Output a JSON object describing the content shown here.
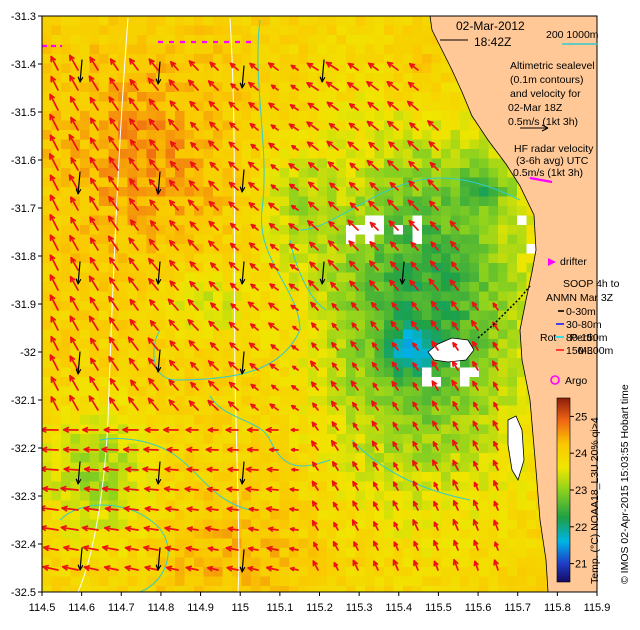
{
  "map": {
    "date": "02-Mar-2012",
    "time": "18:42Z",
    "scale_label": "200  1000m",
    "altimetry": {
      "lines": [
        "Altimetric sealevel",
        "(0.1m contours)",
        "and velocity for",
        "02-Mar 18Z"
      ],
      "speed": "0.5m/s (1kt 3h)"
    },
    "hf_radar": {
      "lines": [
        "HF radar velocity",
        "(3-6h avg) UTC"
      ],
      "speed": "0.5m/s (1kt 3h)"
    },
    "drifter_label": "drifter",
    "soop": {
      "lines": [
        "SOOP 4h to",
        "ANMN Mar 3Z"
      ],
      "depths": [
        {
          "label": "0-30m",
          "color": "#000000"
        },
        {
          "label": "30-80m",
          "color": "#1a1aff"
        },
        {
          "label": "80-150m",
          "color": "#00e5ff"
        },
        {
          "label": "150-300m",
          "color": "#ff1a1a"
        }
      ]
    },
    "place_perth": "Perth",
    "place_rot": "Rot",
    "place_ml": "ML",
    "argo_label": "Argo",
    "colorbar": {
      "label": "Temp. (°C) NOAA18_L3U 20% qi>4",
      "ticks": [
        "25",
        "24",
        "23",
        "22",
        "21"
      ],
      "range": [
        20.5,
        25.5
      ]
    },
    "credit": "© IMOS 02-Apr-2015 15:03:55 Hobart time",
    "x_ticks": [
      "114.5",
      "114.6",
      "114.7",
      "114.8",
      "114.9",
      "115",
      "115.1",
      "115.2",
      "115.3",
      "115.4",
      "115.5",
      "115.6",
      "115.7",
      "115.8",
      "115.9"
    ],
    "y_ticks": [
      "-31.3",
      "-31.4",
      "-31.5",
      "-31.6",
      "-31.7",
      "-31.8",
      "-31.9",
      "-32",
      "-32.1",
      "-32.2",
      "-32.3",
      "-32.4",
      "-32.5"
    ],
    "colors": {
      "land": "#ffc896",
      "hf_arrow": "#ee1111",
      "alt_arrow": "#000000",
      "contour": "#33cccc",
      "drifter": "#ff00ff"
    }
  }
}
